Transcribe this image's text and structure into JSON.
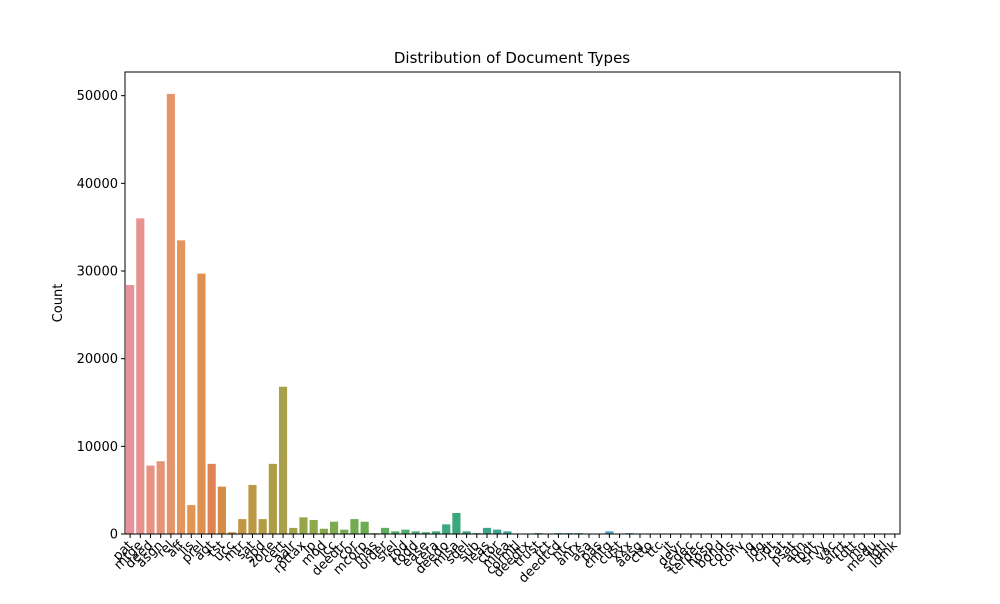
{
  "chart_data": {
    "type": "bar",
    "title": "Distribution of Document Types",
    "ylabel": "Count",
    "categories": [
      "pat",
      "mtge",
      "deed",
      "asgn",
      "rel",
      "aff",
      "lis",
      "prel",
      "agt",
      "tst",
      "ucc",
      "mtr",
      "sat",
      "spd",
      "zone",
      "cert",
      "aalr",
      "rpttax",
      "lp",
      "mod",
      "lcc",
      "deedtr",
      "cor",
      "mcorp",
      "mas",
      "order",
      "srel",
      "tod",
      "todd",
      "ease",
      "cera",
      "deedo",
      "mlsa",
      "sdel",
      "sub",
      "leas",
      "ctor",
      "mlea",
      "cormtl",
      "deedtx",
      "trust",
      "rct",
      "deedtcd",
      "ntc",
      "anrx",
      "asa",
      "pas",
      "cmtg",
      "cust",
      "xxx",
      "aasg",
      "ctto",
      "ttc",
      "jt",
      "devr",
      "scdec",
      "terdec",
      "hosp",
      "bond",
      "corls",
      "conv",
      "lq",
      "jdg",
      "cjdt",
      "cat",
      "psat",
      "adn",
      "tpdt",
      "srvy",
      "vac",
      "airrt",
      "tdtt",
      "mg",
      "mequ",
      "lgtl",
      "ldmk"
    ],
    "values": [
      28400,
      36000,
      7800,
      8300,
      50200,
      33500,
      3300,
      29700,
      8000,
      5400,
      200,
      1700,
      5600,
      1700,
      8000,
      16800,
      700,
      1900,
      1600,
      600,
      1400,
      500,
      1700,
      1400,
      100,
      700,
      300,
      500,
      300,
      200,
      300,
      1100,
      2400,
      300,
      100,
      700,
      500,
      300,
      50,
      50,
      100,
      50,
      100,
      100,
      100,
      50,
      50,
      300,
      50,
      100,
      30,
      20,
      40,
      20,
      10,
      20,
      30,
      10,
      20,
      10,
      20,
      10,
      30,
      10,
      20,
      10,
      10,
      20,
      10,
      10,
      20,
      10,
      10,
      10,
      10,
      10
    ],
    "colors": [
      "#e8919a",
      "#e7928e",
      "#e69382",
      "#e59477",
      "#e5956b",
      "#e3965e",
      "#e19454",
      "#de9050",
      "#dd8452",
      "#d58d46",
      "#cc9144",
      "#c39544",
      "#bb9944",
      "#b49c45",
      "#ad9e46",
      "#a8a04a",
      "#a0a34a",
      "#97a64a",
      "#8ea84b",
      "#85a94c",
      "#7daa4d",
      "#76ab4e",
      "#70ac4e",
      "#6aad4e",
      "#63ae52",
      "#5bae5a",
      "#54ae62",
      "#4dad69",
      "#47ac70",
      "#42ab76",
      "#3eaa7a",
      "#3ba97c",
      "#3aa77e",
      "#3aa57f",
      "#3aa585",
      "#3ba58b",
      "#3ba591",
      "#3ba597",
      "#3ba59c",
      "#3ca4a1",
      "#3ca4a5",
      "#3ca3a8",
      "#3ca2ab",
      "#3da2b1",
      "#3ea2b7",
      "#3fa2bd",
      "#41a2c2",
      "#43a2c6",
      "#46a2ca",
      "#49a3cd",
      "#4ca3cf",
      "#4fa3d0",
      "#5aa2d6",
      "#64a1dc",
      "#6ea0e0",
      "#779fe3",
      "#7f9ee5",
      "#869de7",
      "#8a9de8",
      "#8c9ce9",
      "#8d9ce9",
      "#949ae9",
      "#9c98e9",
      "#a396e9",
      "#aa94e9",
      "#b092e9",
      "#b690e8",
      "#bd8ee8",
      "#c38de8",
      "#c98ce4",
      "#cf8ce0",
      "#d48bdb",
      "#d98bd5",
      "#dd8ad0",
      "#e18acb",
      "#e58ac6"
    ],
    "ylim": [
      0,
      52700
    ],
    "yticks": [
      0,
      10000,
      20000,
      30000,
      40000,
      50000
    ]
  }
}
